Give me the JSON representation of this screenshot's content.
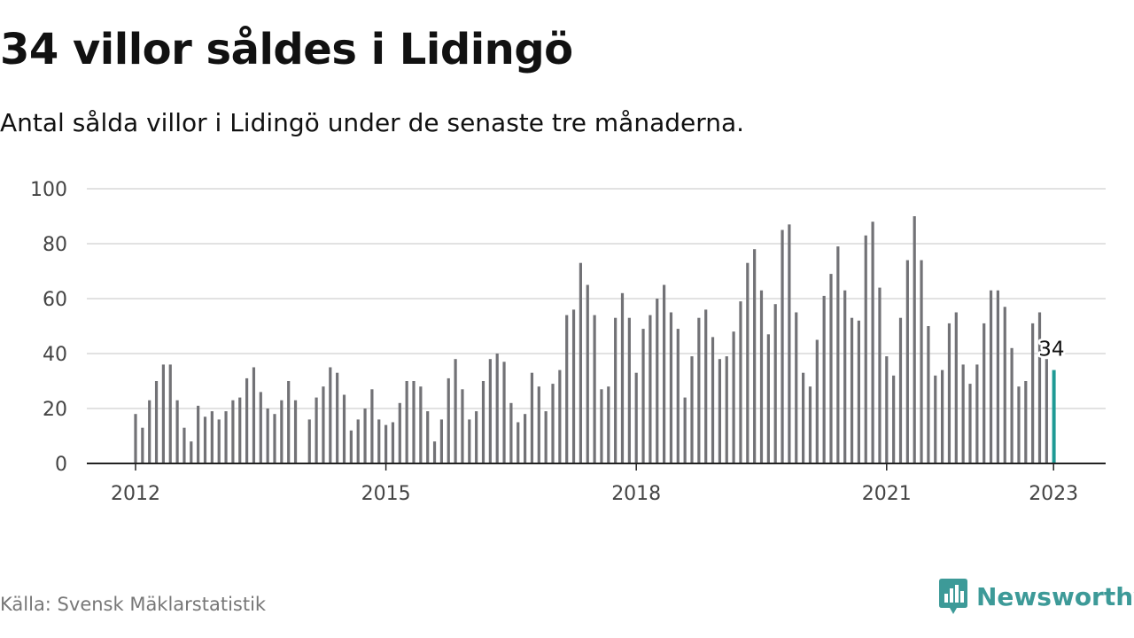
{
  "title": "34 villor såldes i Lidingö",
  "subtitle": "Antal sålda villor i Lidingö under de senaste tre månaderna.",
  "source": "Källa: Svensk Mäklarstatistik",
  "brand": "Newsworthy",
  "colors": {
    "bar": "#727276",
    "highlight": "#1f9a95",
    "grid": "#d9d9d9",
    "brand": "#3d9a98"
  },
  "chart_data": {
    "type": "bar",
    "xlabel": "",
    "ylabel": "",
    "ylim": [
      0,
      100
    ],
    "yticks": [
      0,
      20,
      40,
      60,
      80,
      100
    ],
    "xticks": [
      "2012",
      "2015",
      "2018",
      "2021",
      "2023"
    ],
    "start": "2012-01",
    "end": "2023-01",
    "grid": true,
    "annotation": {
      "label": "34",
      "target": "2023-01"
    },
    "values": [
      18,
      13,
      23,
      30,
      36,
      36,
      23,
      13,
      8,
      21,
      17,
      19,
      16,
      19,
      23,
      24,
      31,
      35,
      26,
      20,
      18,
      23,
      30,
      23,
      null,
      16,
      24,
      28,
      35,
      33,
      25,
      12,
      16,
      20,
      27,
      16,
      14,
      15,
      22,
      30,
      30,
      28,
      19,
      8,
      16,
      31,
      38,
      27,
      16,
      19,
      30,
      38,
      40,
      37,
      22,
      15,
      18,
      33,
      28,
      19,
      29,
      34,
      54,
      56,
      73,
      65,
      54,
      27,
      28,
      53,
      62,
      53,
      33,
      49,
      54,
      60,
      65,
      55,
      49,
      24,
      39,
      53,
      56,
      46,
      38,
      39,
      48,
      59,
      73,
      78,
      63,
      47,
      58,
      85,
      87,
      55,
      33,
      28,
      45,
      61,
      69,
      79,
      63,
      53,
      52,
      83,
      88,
      64,
      39,
      32,
      53,
      74,
      90,
      74,
      50,
      32,
      34,
      51,
      55,
      36,
      29,
      36,
      51,
      63,
      63,
      57,
      42,
      28,
      30,
      51,
      55,
      38,
      34
    ]
  }
}
